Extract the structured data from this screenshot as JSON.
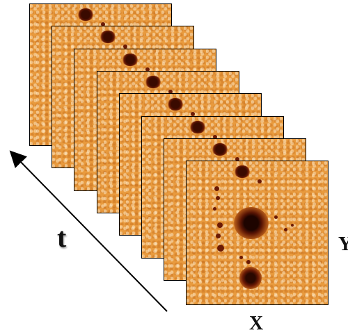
{
  "labels": {
    "time_axis": "t",
    "x_axis": "X",
    "y_axis": "Y"
  },
  "frames": {
    "count": 8,
    "fill_color": "#e89a3e",
    "spot_color": "#6b1a05"
  }
}
